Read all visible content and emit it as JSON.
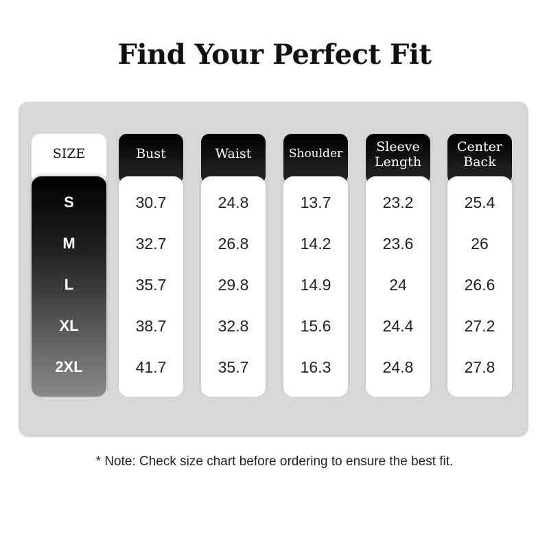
{
  "title": "Find Your Perfect Fit",
  "size_header": "SIZE",
  "sizes": [
    "S",
    "M",
    "L",
    "XL",
    "2XL"
  ],
  "columns": [
    {
      "label": "Bust",
      "values": [
        "30.7",
        "32.7",
        "35.7",
        "38.7",
        "41.7"
      ]
    },
    {
      "label": "Waist",
      "values": [
        "24.8",
        "26.8",
        "29.8",
        "32.8",
        "35.7"
      ]
    },
    {
      "label": "Shoulder",
      "values": [
        "13.7",
        "14.2",
        "14.9",
        "15.6",
        "16.3"
      ]
    },
    {
      "label": "Sleeve Length",
      "values": [
        "23.2",
        "23.6",
        "24",
        "24.4",
        "24.8"
      ]
    },
    {
      "label": "Center Back",
      "values": [
        "25.4",
        "26",
        "26.6",
        "27.2",
        "27.8"
      ]
    }
  ],
  "note": "* Note: Check size chart before ordering to ensure the best fit."
}
